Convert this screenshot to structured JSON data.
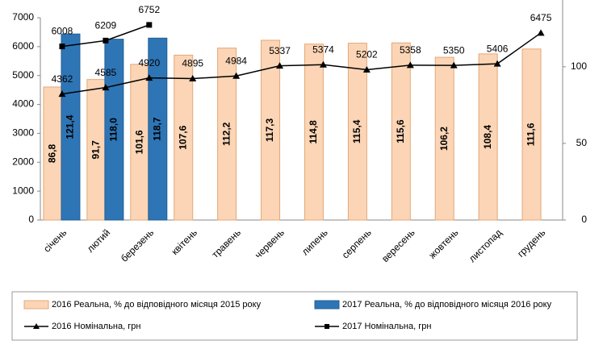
{
  "chart_data": {
    "type": "bar",
    "categories": [
      "січень",
      "лютий",
      "березень",
      "квітень",
      "травень",
      "червень",
      "липень",
      "серпень",
      "вересень",
      "жовтень",
      "листопад",
      "грудень"
    ],
    "series": [
      {
        "name": "2016 Реальна, % до відповідного місяця 2015 року",
        "type": "bar",
        "axis": "y2",
        "color": "#fbd5b5",
        "values": [
          86.8,
          91.7,
          101.6,
          107.6,
          112.2,
          117.3,
          114.8,
          115.4,
          115.6,
          106.2,
          108.4,
          111.6
        ],
        "value_labels": [
          "86,8",
          "91,7",
          "101,6",
          "107,6",
          "112,2",
          "117,3",
          "114,8",
          "115,4",
          "115,6",
          "106,2",
          "108,4",
          "111,6"
        ]
      },
      {
        "name": "2017 Реальна, % до відповідного місяця 2016 року",
        "type": "bar",
        "axis": "y2",
        "color": "#2e75b6",
        "values": [
          121.4,
          118.0,
          118.7,
          null,
          null,
          null,
          null,
          null,
          null,
          null,
          null,
          null
        ],
        "value_labels": [
          "121,4",
          "118,0",
          "118,7",
          null,
          null,
          null,
          null,
          null,
          null,
          null,
          null,
          null
        ]
      },
      {
        "name": "2016 Номінальна, грн",
        "type": "line",
        "marker": "triangle",
        "color": "#000000",
        "values": [
          4362,
          4585,
          4920,
          4895,
          4984,
          5337,
          5374,
          5202,
          5358,
          5350,
          5406,
          6475
        ]
      },
      {
        "name": "2017 Номінальна, грн",
        "type": "line",
        "marker": "square",
        "color": "#000000",
        "values": [
          6008,
          6209,
          6752,
          null,
          null,
          null,
          null,
          null,
          null,
          null,
          null,
          null
        ]
      }
    ],
    "ylim": [
      0,
      7000
    ],
    "yticks": [
      0,
      1000,
      2000,
      3000,
      4000,
      5000,
      6000,
      7000
    ],
    "y2lim": [
      0,
      132
    ],
    "y2ticks": [
      0,
      50,
      100
    ],
    "grid": false,
    "legend": "bottom"
  }
}
